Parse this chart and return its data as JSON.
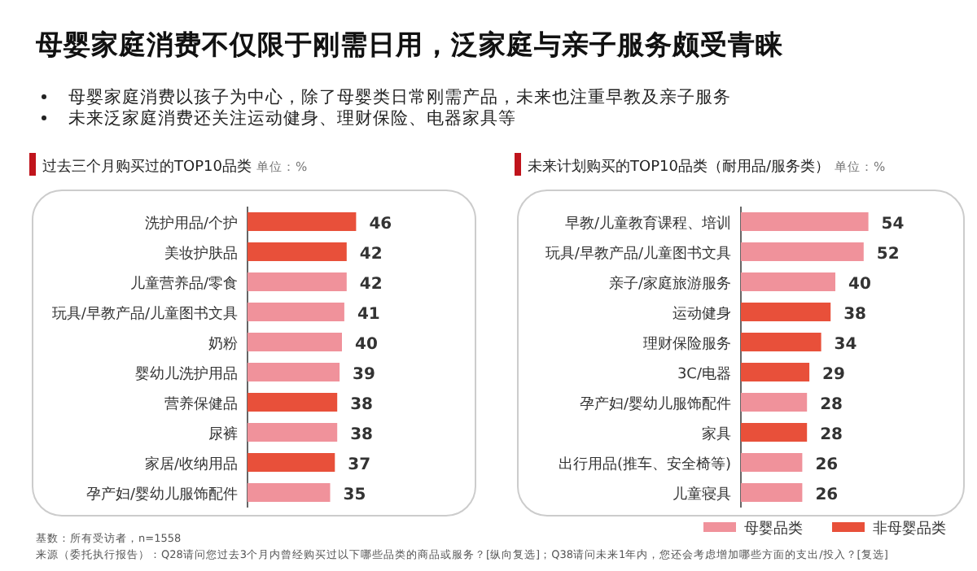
{
  "chart_data": [
    {
      "type": "other",
      "title": "母婴家庭消费不仅限于刚需日用，泛家庭与亲子服务颇受青睐",
      "annotations": [
        "母婴家庭消费以孩子为中心，除了母婴类日常刚需产品，未来也注重早教及亲子服务",
        "未来泛家庭消费还关注运动健身、理财保险、电器家具等"
      ]
    },
    {
      "type": "bar",
      "orientation": "horizontal",
      "title": "过去三个月购买过的TOP10品类",
      "subtitle": "单位：%",
      "categories": [
        "洗护用品/个护",
        "美妆护肤品",
        "儿童营养品/零食",
        "玩具/早教产品/儿童图书文具",
        "奶粉",
        "婴幼儿洗护用品",
        "营养保健品",
        "尿裤",
        "家居/收纳用品",
        "孕产妇/婴幼儿服饰配件"
      ],
      "series": [
        {
          "color": "#f0929b",
          "values": [
            null,
            null,
            42,
            41,
            40,
            39,
            null,
            38,
            null,
            35
          ]
        },
        {
          "color": "#e8503a",
          "values": [
            46,
            42,
            null,
            null,
            null,
            null,
            38,
            null,
            37,
            null
          ]
        }
      ],
      "data_labels": true,
      "legend": false
    },
    {
      "type": "bar",
      "orientation": "horizontal",
      "title": "未来计划购买的TOP10品类（耐用品/服务类）",
      "subtitle": "单位：%",
      "categories": [
        "早教/儿童教育课程、培训",
        "玩具/早教产品/儿童图书文具",
        "亲子/家庭旅游服务",
        "运动健身",
        "理财保险服务",
        "3C/电器",
        "孕产妇/婴幼儿服饰配件",
        "家具",
        "出行用品(推车、安全椅等)",
        "儿童寝具"
      ],
      "series": [
        {
          "name": "母婴品类",
          "color": "#f0929b",
          "values": [
            54,
            52,
            40,
            null,
            null,
            null,
            28,
            null,
            26,
            26
          ]
        },
        {
          "name": "非母婴品类",
          "color": "#e8503a",
          "values": [
            null,
            null,
            null,
            38,
            34,
            29,
            null,
            28,
            null,
            null
          ]
        }
      ],
      "data_labels": true,
      "legend": "bottom right"
    },
    {
      "type": "other",
      "annotations": [
        "基数：所有受访者，n=1558",
        "来源（委托执行报告）：Q28请问您过去3个月内曾经购买过以下哪些品类的商品或服务？[纵向复选]；Q38请问未来1年内，您还会考虑增加哪些方面的支出/投入？[复选]"
      ]
    }
  ]
}
